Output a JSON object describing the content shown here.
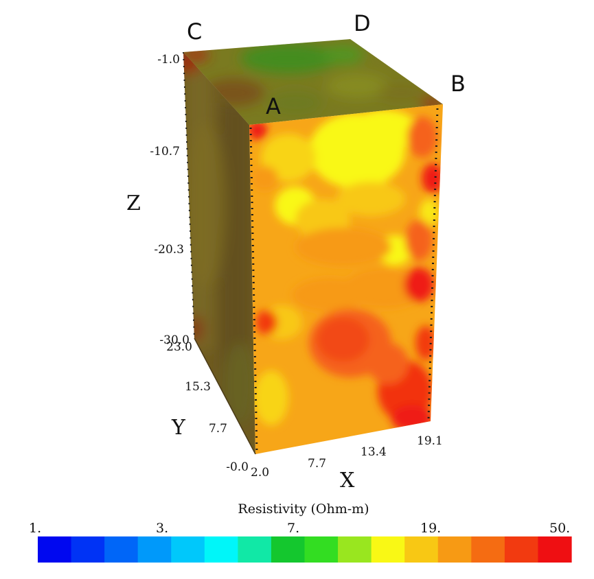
{
  "corners": {
    "a": "A",
    "b": "B",
    "c": "C",
    "d": "D"
  },
  "axes": {
    "z": {
      "title": "Z",
      "ticks": [
        "-1.0",
        "-10.7",
        "-20.3",
        "-30.0"
      ]
    },
    "y": {
      "title": "Y",
      "ticks": [
        "23.0",
        "15.3",
        "7.7",
        "-0.0"
      ]
    },
    "x": {
      "title": "X",
      "ticks": [
        "2.0",
        "7.7",
        "13.4",
        "19.1"
      ]
    }
  },
  "colorbar": {
    "title": "Resistivity (Ohm-m)",
    "ticks": [
      "1.",
      "3.",
      "7.",
      "19.",
      "50."
    ],
    "colors": [
      "#0008f0",
      "#0033f5",
      "#0066f8",
      "#0099fa",
      "#00c8fb",
      "#00f6f9",
      "#11e8a6",
      "#14c72e",
      "#33dd22",
      "#99e61f",
      "#f9f815",
      "#f8c814",
      "#f79a14",
      "#f56c12",
      "#f23a10",
      "#ef0f12"
    ]
  },
  "colors": {
    "front_base": "#f7a618",
    "top_base": "#7a7a20",
    "side_base": "#6e5a20"
  }
}
